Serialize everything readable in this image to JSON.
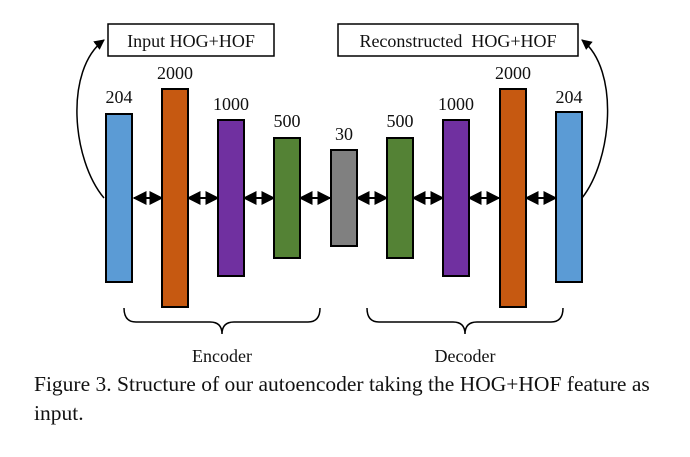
{
  "figure": {
    "input_label": "Input HOG+HOF",
    "output_label": "Reconstructed  HOG+HOF",
    "encoder_label": "Encoder",
    "decoder_label": "Decoder",
    "layers": [
      {
        "units": "204",
        "color": "#5b9bd5"
      },
      {
        "units": "2000",
        "color": "#c65911"
      },
      {
        "units": "1000",
        "color": "#7030a0"
      },
      {
        "units": "500",
        "color": "#548235"
      },
      {
        "units": "30",
        "color": "#808080"
      },
      {
        "units": "500",
        "color": "#548235"
      },
      {
        "units": "1000",
        "color": "#7030a0"
      },
      {
        "units": "2000",
        "color": "#c65911"
      },
      {
        "units": "204",
        "color": "#5b9bd5"
      }
    ]
  },
  "caption": "Figure 3. Structure of our autoencoder taking the HOG+HOF feature as input."
}
